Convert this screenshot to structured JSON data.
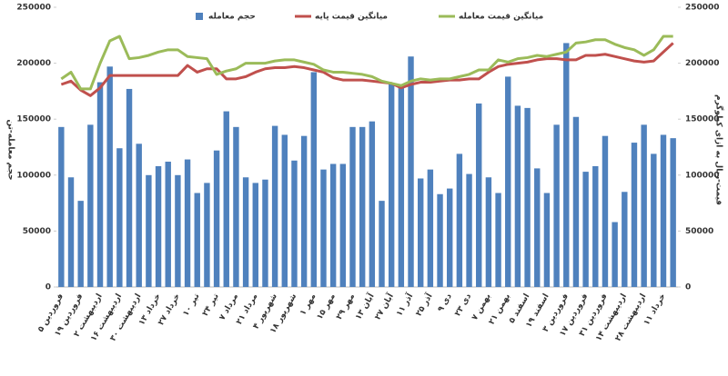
{
  "chart_data": {
    "type": "bar-line",
    "y_label": "حجم معامله-تن",
    "y2_label": "قیمت-ریال به ازای کیلوگرم",
    "categories": [
      "۵ فروردین",
      null,
      "۱۹ فروردین",
      null,
      "۲ اردیبهشت",
      null,
      "۱۶ اردیبهشت",
      null,
      "۳۰ اردیبهشت",
      null,
      "۱۳ خرداد",
      null,
      "۲۷ خرداد",
      null,
      "۱۰ تیر",
      null,
      "۲۴ تیر",
      null,
      "۷ مرداد",
      null,
      "۲۱ مرداد",
      null,
      "۴ شهریور",
      null,
      "۱۸ شهریور",
      null,
      "۱ مهر",
      null,
      "۱۵ مهر",
      null,
      "۲۹ مهر",
      null,
      "۱۳ آبان",
      null,
      "۲۷ آبان",
      null,
      "۱۱ آذر",
      null,
      "۲۵ آذر",
      null,
      "۹ دی",
      null,
      "۲۳ دی",
      null,
      "۷ بهمن",
      null,
      "۲۱ بهمن",
      null,
      "۵ اسفند",
      null,
      "۱۹ اسفند",
      null,
      "۳ فروردین",
      null,
      "۱۷ فروردین",
      null,
      "۳۱ فروردین",
      null,
      "۱۴ اردیبهشت",
      null,
      "۲۸ اردیبهشت",
      null,
      "۱۱ خرداد",
      null
    ],
    "series": [
      {
        "name": "حجم معامله",
        "color": "#4f81bd",
        "type": "bar",
        "values": [
          143000,
          98000,
          77000,
          145000,
          183000,
          197000,
          124000,
          177000,
          128000,
          100000,
          108000,
          112000,
          100000,
          114000,
          84000,
          93000,
          122000,
          157000,
          143000,
          98000,
          93000,
          96000,
          144000,
          136000,
          113000,
          135000,
          192000,
          105000,
          110000,
          110000,
          143000,
          143000,
          148000,
          77000,
          182000,
          181000,
          206000,
          97000,
          105000,
          83000,
          88000,
          119000,
          101000,
          164000,
          98000,
          84000,
          188000,
          162000,
          160000,
          106000,
          84000,
          145000,
          218000,
          152000,
          103000,
          108000,
          135000,
          58000,
          85000,
          129000,
          145000,
          119000,
          136000,
          133000
        ]
      },
      {
        "name": "میانگین قیمت پایه",
        "color": "#c0504d",
        "type": "line",
        "axis": "y2",
        "values": [
          181000,
          184000,
          176000,
          171000,
          178000,
          189000,
          189000,
          189000,
          189000,
          189000,
          189000,
          189000,
          189000,
          198000,
          192000,
          195000,
          195000,
          186000,
          186000,
          188000,
          192000,
          195000,
          196000,
          196000,
          197000,
          196000,
          194000,
          192000,
          187000,
          185000,
          185000,
          185000,
          184000,
          183000,
          182000,
          178000,
          181000,
          183000,
          183000,
          184000,
          185000,
          185000,
          186000,
          186000,
          192000,
          197000,
          199000,
          200000,
          201000,
          203000,
          204000,
          204000,
          203000,
          203000,
          207000,
          207000,
          208000,
          206000,
          204000,
          202000,
          201000,
          202000,
          210000,
          218000
        ]
      },
      {
        "name": "میانگین قیمت معامله",
        "color": "#9bbb59",
        "type": "line",
        "axis": "y2",
        "values": [
          186000,
          192000,
          177000,
          177000,
          200000,
          220000,
          224000,
          204000,
          205000,
          207000,
          210000,
          212000,
          212000,
          206000,
          205000,
          204000,
          190000,
          193000,
          195000,
          200000,
          200000,
          200000,
          202000,
          203000,
          203000,
          201000,
          199000,
          194000,
          192000,
          192000,
          191000,
          190000,
          188000,
          184000,
          182000,
          180000,
          184000,
          186000,
          185000,
          186000,
          186000,
          188000,
          190000,
          194000,
          194000,
          203000,
          201000,
          204000,
          205000,
          207000,
          206000,
          208000,
          210000,
          218000,
          219000,
          221000,
          221000,
          217000,
          214000,
          212000,
          207000,
          212000,
          224000,
          224000
        ]
      }
    ],
    "ylim": [
      0,
      250000
    ],
    "yticks": [
      0,
      50000,
      100000,
      150000,
      200000,
      250000
    ],
    "y2lim": [
      0,
      250000
    ],
    "y2ticks": [
      0,
      50000,
      100000,
      150000,
      200000,
      250000
    ]
  }
}
